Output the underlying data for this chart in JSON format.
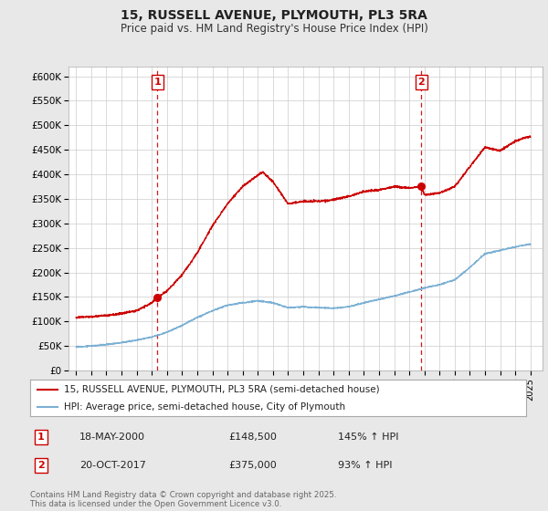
{
  "title": "15, RUSSELL AVENUE, PLYMOUTH, PL3 5RA",
  "subtitle": "Price paid vs. HM Land Registry's House Price Index (HPI)",
  "xlim_left": 1994.5,
  "xlim_right": 2025.8,
  "ylim": [
    0,
    620000
  ],
  "yticks": [
    0,
    50000,
    100000,
    150000,
    200000,
    250000,
    300000,
    350000,
    400000,
    450000,
    500000,
    550000,
    600000
  ],
  "ytick_labels": [
    "£0",
    "£50K",
    "£100K",
    "£150K",
    "£200K",
    "£250K",
    "£300K",
    "£350K",
    "£400K",
    "£450K",
    "£500K",
    "£550K",
    "£600K"
  ],
  "sale1_year": 2000.37,
  "sale1_price": 148500,
  "sale2_year": 2017.79,
  "sale2_price": 375000,
  "red_color": "#cc0000",
  "blue_color": "#7ab0d4",
  "dashed_color": "#cc0000",
  "legend_label_red": "15, RUSSELL AVENUE, PLYMOUTH, PL3 5RA (semi-detached house)",
  "legend_label_blue": "HPI: Average price, semi-detached house, City of Plymouth",
  "footnote": "Contains HM Land Registry data © Crown copyright and database right 2025.\nThis data is licensed under the Open Government Licence v3.0.",
  "table_row1": [
    "1",
    "18-MAY-2000",
    "£148,500",
    "145% ↑ HPI"
  ],
  "table_row2": [
    "2",
    "20-OCT-2017",
    "£375,000",
    "93% ↑ HPI"
  ],
  "background_color": "#e8e8e8",
  "plot_bg_color": "#ffffff",
  "grid_color": "#cccccc"
}
